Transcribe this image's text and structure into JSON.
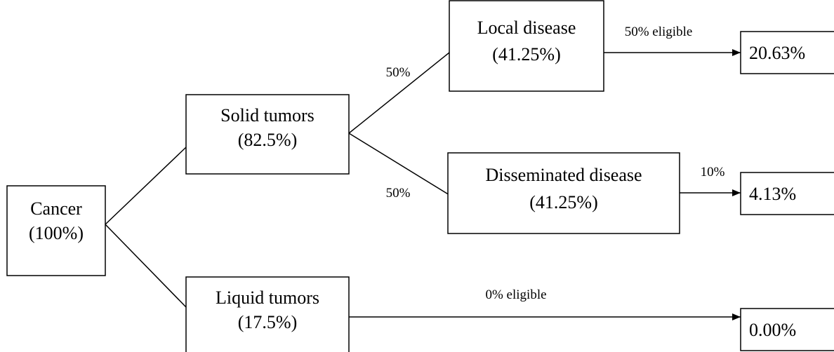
{
  "nodes": [
    {
      "label": "Cancer",
      "percent": "(100%)"
    },
    {
      "label": "Solid tumors",
      "percent": "(82.5%)"
    },
    {
      "label": "Liquid tumors",
      "percent": "(17.5%)"
    },
    {
      "label": "Local disease",
      "percent": "(41.25%)"
    },
    {
      "label": "Disseminated disease",
      "percent": "(41.25%)"
    }
  ],
  "results": [
    "20.63%",
    "4.13%",
    "0.00%"
  ],
  "edge_labels": [
    "50%",
    "50%",
    "50% eligible",
    "10%",
    "0% eligible"
  ]
}
